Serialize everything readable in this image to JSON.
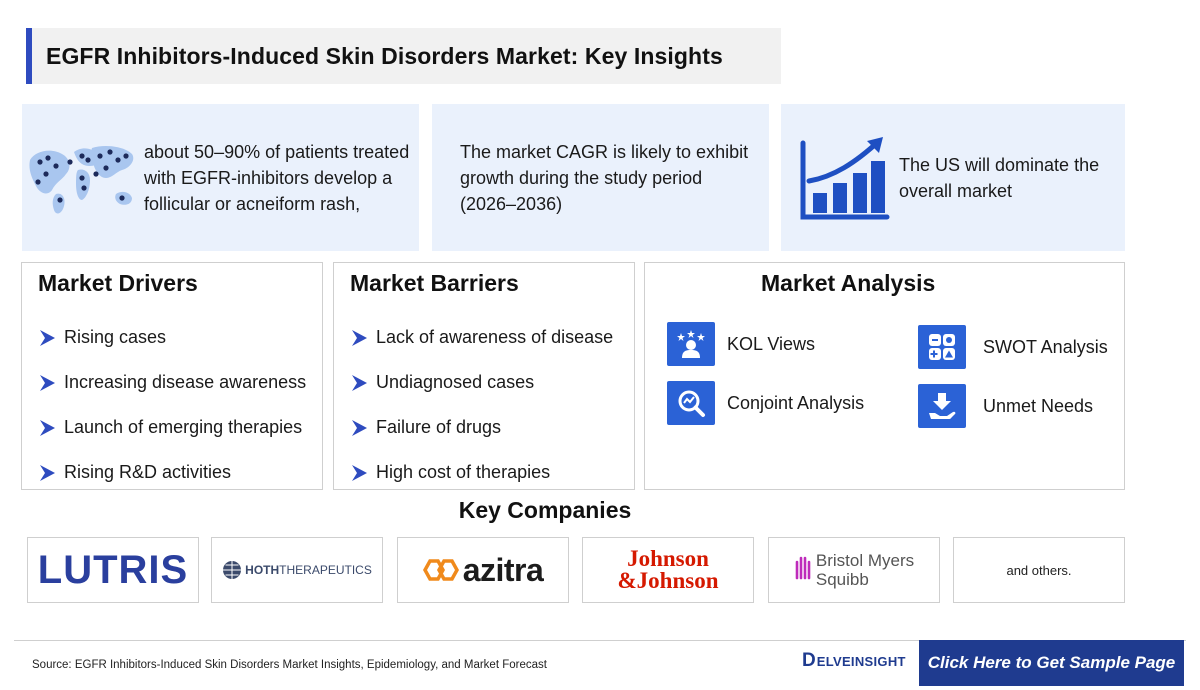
{
  "title": "EGFR Inhibitors-Induced Skin Disorders Market: Key Insights",
  "insights": [
    {
      "icon": "world-map-icon",
      "text": "about 50–90% of patients treated with EGFR-inhibitors develop a follicular or acneiform rash,"
    },
    {
      "text": "The market CAGR is likely to exhibit growth during the study period (2026–2036)"
    },
    {
      "icon": "growth-chart-icon",
      "text": "The US will dominate the overall market"
    }
  ],
  "drivers": {
    "heading": "Market Drivers",
    "items": [
      "Rising cases",
      "Increasing disease awareness",
      "Launch of emerging therapies",
      "Rising R&D activities"
    ]
  },
  "barriers": {
    "heading": "Market Barriers",
    "items": [
      "Lack of awareness of disease",
      "Undiagnosed cases",
      "Failure of drugs",
      "High cost of therapies"
    ]
  },
  "analysis": {
    "heading": "Market Analysis",
    "items": [
      {
        "label": "KOL Views",
        "icon": "kol-icon"
      },
      {
        "label": "SWOT Analysis",
        "icon": "swot-icon"
      },
      {
        "label": "Conjoint Analysis",
        "icon": "conjoint-icon"
      },
      {
        "label": "Unmet Needs",
        "icon": "unmet-needs-icon"
      }
    ]
  },
  "companies": {
    "heading": "Key Companies",
    "logos": [
      "LUTRIS",
      "HOTH",
      "THERAPEUTICS",
      "azitra",
      "Johnson",
      "&Johnson",
      "Bristol Myers",
      "Squibb"
    ],
    "others": "and others."
  },
  "footer": {
    "source": "Source: EGFR Inhibitors-Induced Skin Disorders Market Insights, Epidemiology, and Market Forecast",
    "brand": "ELVEINSIGHT",
    "brand_initial": "D",
    "cta": "Click Here to Get Sample Page"
  },
  "colors": {
    "accent": "#2e4bbf",
    "icon_blue": "#2b62d6",
    "panel": "#eaf1fc",
    "cta": "#1f3b8f",
    "jnj_red": "#d51900",
    "bms_purple": "#be2bbb"
  }
}
